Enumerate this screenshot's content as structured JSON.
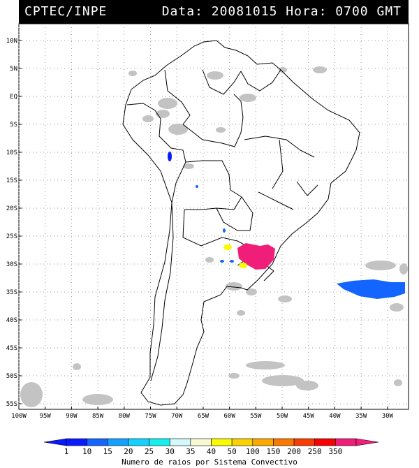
{
  "header": {
    "left": "CPTEC/INPE",
    "right": "Data: 20081015 Hora: 0700 GMT"
  },
  "map": {
    "lon_range": [
      -100,
      -26
    ],
    "lat_range": [
      -56,
      13
    ],
    "lat_ticks": [
      {
        "value": 10,
        "label": "10N"
      },
      {
        "value": 5,
        "label": "5N"
      },
      {
        "value": 0,
        "label": "EQ"
      },
      {
        "value": -5,
        "label": "5S"
      },
      {
        "value": -10,
        "label": "10S"
      },
      {
        "value": -15,
        "label": "15S"
      },
      {
        "value": -20,
        "label": "20S"
      },
      {
        "value": -25,
        "label": "25S"
      },
      {
        "value": -30,
        "label": "30S"
      },
      {
        "value": -35,
        "label": "35S"
      },
      {
        "value": -40,
        "label": "40S"
      },
      {
        "value": -45,
        "label": "45S"
      },
      {
        "value": -50,
        "label": "50S"
      },
      {
        "value": -55,
        "label": "55S"
      }
    ],
    "lon_ticks": [
      {
        "value": -100,
        "label": "100W"
      },
      {
        "value": -95,
        "label": "95W"
      },
      {
        "value": -90,
        "label": "90W"
      },
      {
        "value": -85,
        "label": "85W"
      },
      {
        "value": -80,
        "label": "80W"
      },
      {
        "value": -75,
        "label": "75W"
      },
      {
        "value": -70,
        "label": "70W"
      },
      {
        "value": -65,
        "label": "65W"
      },
      {
        "value": -60,
        "label": "60W"
      },
      {
        "value": -55,
        "label": "55W"
      },
      {
        "value": -50,
        "label": "50W"
      },
      {
        "value": -45,
        "label": "45W"
      },
      {
        "value": -40,
        "label": "40W"
      },
      {
        "value": -35,
        "label": "35W"
      },
      {
        "value": -30,
        "label": "30W"
      }
    ],
    "grid": true,
    "colors": {
      "cloud": "#c3c3c3",
      "land_outline": "#000000",
      "grid": "#9a9a9a"
    }
  },
  "legend": {
    "labels": [
      "1",
      "10",
      "15",
      "20",
      "25",
      "30",
      "35",
      "40",
      "50",
      "100",
      "150",
      "200",
      "250",
      "350"
    ],
    "colors": [
      "#0a1aff",
      "#1464ff",
      "#14a0ff",
      "#14d2ff",
      "#14f0f0",
      "#d2fafa",
      "#fafad2",
      "#fafa00",
      "#fad200",
      "#faaa00",
      "#fa7800",
      "#fa3c00",
      "#fa0000",
      "#f01e78"
    ],
    "caption": "Numero de raios por Sistema Convectivo"
  }
}
